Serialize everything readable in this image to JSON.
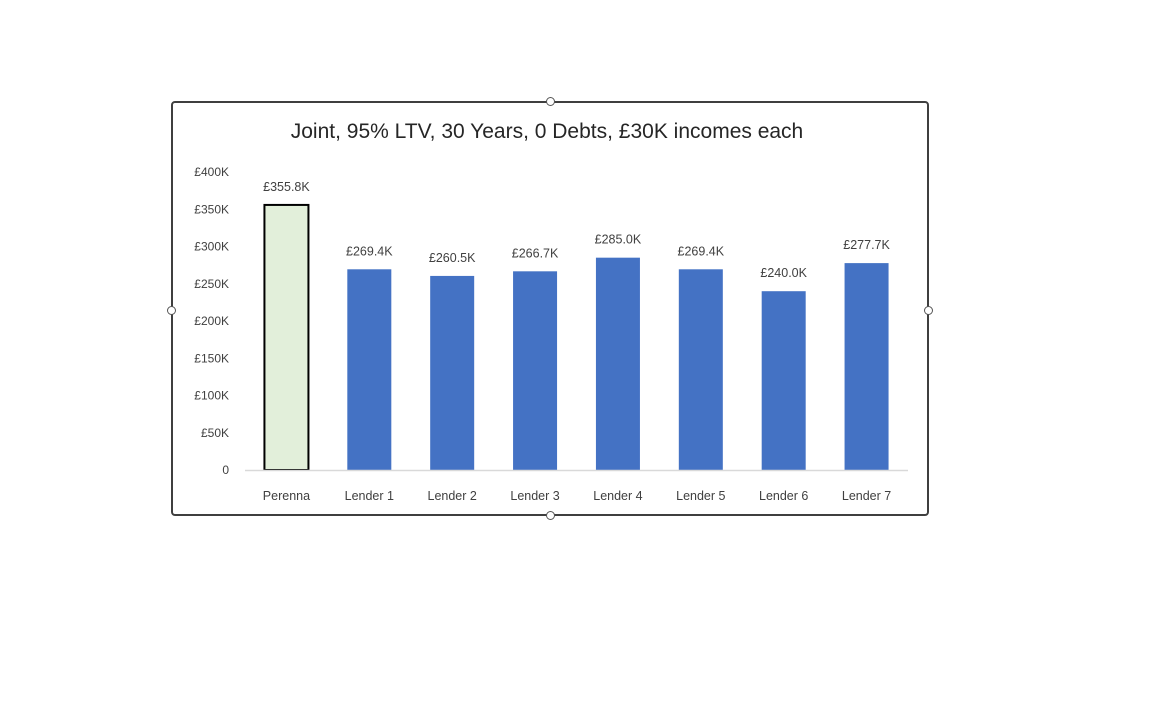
{
  "chart_data": {
    "type": "bar",
    "title": "Joint, 95% LTV, 30 Years, 0 Debts, £30K incomes each",
    "xlabel": "",
    "ylabel": "",
    "categories": [
      "Perenna",
      "Lender 1",
      "Lender 2",
      "Lender 3",
      "Lender 4",
      "Lender 5",
      "Lender 6",
      "Lender 7"
    ],
    "values": [
      355.8,
      269.4,
      260.5,
      266.7,
      285.0,
      269.4,
      240.0,
      277.7
    ],
    "data_labels": [
      "£355.8K",
      "£269.4K",
      "£260.5K",
      "£266.7K",
      "£285.0K",
      "£269.4K",
      "£240.0K",
      "£277.7K"
    ],
    "ylim": [
      0,
      400
    ],
    "yticks": [
      0,
      50,
      100,
      150,
      200,
      250,
      300,
      350,
      400
    ],
    "ytick_labels": [
      "0",
      "£50K",
      "£100K",
      "£150K",
      "£200K",
      "£250K",
      "£300K",
      "£350K",
      "£400K"
    ],
    "grid": false,
    "legend": "none",
    "colors": {
      "default_bar": "#4472c4",
      "highlight_bar": "#e2efda",
      "highlight_border": "#000000",
      "axis": "#d9d9d9"
    },
    "highlight_index": 0
  }
}
